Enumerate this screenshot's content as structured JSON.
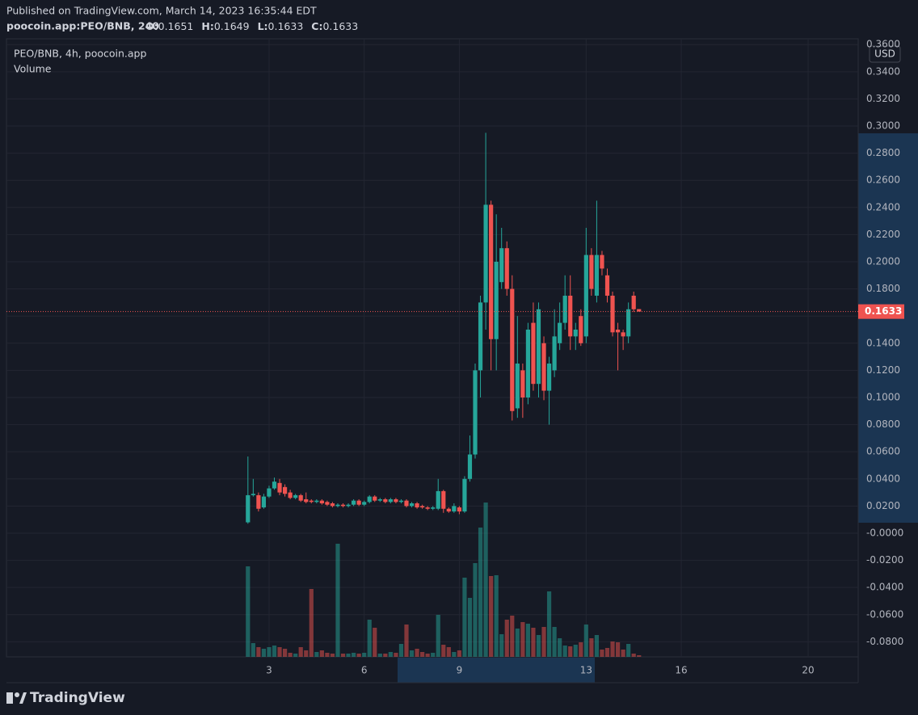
{
  "header": {
    "published": "Published on TradingView.com, March 14, 2023 16:35:44 EDT",
    "symbol": "poocoin.app:PEO/BNB, 240",
    "ohlc": [
      "O:",
      "0.1651",
      "H:",
      "0.1649",
      "L:",
      "0.1633",
      "C:",
      "0.1633"
    ]
  },
  "footer": {
    "brand": "TradingView"
  },
  "chart_data": {
    "type": "candlestick",
    "legend": "PEO/BNB, 4h, poocoin.app",
    "volume_label": "Volume",
    "currency": "USD",
    "up_color": "#26a69a",
    "down_color": "#ef5350",
    "grid": true,
    "x": [
      2.3333,
      2.5,
      2.6667,
      2.8333,
      3,
      3.1667,
      3.3333,
      3.5,
      3.6667,
      3.8333,
      4,
      4.1667,
      4.3333,
      4.5,
      4.6667,
      4.8333,
      5,
      5.1667,
      5.3333,
      5.5,
      5.6667,
      5.8333,
      6,
      6.1667,
      6.3333,
      6.5,
      6.6667,
      6.8333,
      7,
      7.1667,
      7.3333,
      7.5,
      7.6667,
      7.8333,
      8,
      8.1667,
      8.3333,
      8.5,
      8.6667,
      8.8333,
      9,
      9.1667,
      9.3333,
      9.5,
      9.6667,
      9.8333,
      10,
      10.1667,
      10.3333,
      10.5,
      10.6667,
      10.8333,
      11,
      11.1667,
      11.3333,
      11.5,
      11.6667,
      11.8333,
      12,
      12.1667,
      12.3333,
      12.5,
      12.6667,
      12.8333,
      13,
      13.1667,
      13.3333,
      13.5,
      13.6667,
      13.8333,
      14,
      14.1667,
      14.3333,
      14.5,
      14.6667
    ],
    "open": [
      0.008,
      0.028,
      0.028,
      0.019,
      0.027,
      0.033,
      0.037,
      0.034,
      0.03,
      0.026,
      0.028,
      0.025,
      0.024,
      0.023,
      0.024,
      0.023,
      0.022,
      0.02,
      0.021,
      0.02,
      0.021,
      0.024,
      0.021,
      0.023,
      0.027,
      0.024,
      0.025,
      0.023,
      0.025,
      0.023,
      0.024,
      0.02,
      0.022,
      0.02,
      0.019,
      0.018,
      0.018,
      0.031,
      0.018,
      0.016,
      0.019,
      0.016,
      0.04,
      0.058,
      0.12,
      0.17,
      0.242,
      0.143,
      0.185,
      0.21,
      0.18,
      0.092,
      0.12,
      0.1,
      0.155,
      0.11,
      0.14,
      0.105,
      0.12,
      0.14,
      0.155,
      0.175,
      0.145,
      0.16,
      0.145,
      0.205,
      0.175,
      0.205,
      0.19,
      0.175,
      0.15,
      0.148,
      0.145,
      0.175,
      0.1651
    ],
    "high": [
      0.0565,
      0.04,
      0.03,
      0.029,
      0.035,
      0.041,
      0.04,
      0.036,
      0.032,
      0.029,
      0.029,
      0.03,
      0.025,
      0.025,
      0.025,
      0.024,
      0.023,
      0.022,
      0.022,
      0.022,
      0.025,
      0.025,
      0.024,
      0.028,
      0.028,
      0.026,
      0.026,
      0.026,
      0.026,
      0.025,
      0.025,
      0.023,
      0.023,
      0.021,
      0.02,
      0.02,
      0.04,
      0.032,
      0.019,
      0.022,
      0.02,
      0.042,
      0.072,
      0.125,
      0.175,
      0.295,
      0.245,
      0.235,
      0.225,
      0.215,
      0.19,
      0.16,
      0.125,
      0.155,
      0.17,
      0.17,
      0.145,
      0.13,
      0.165,
      0.17,
      0.19,
      0.19,
      0.155,
      0.165,
      0.225,
      0.21,
      0.245,
      0.208,
      0.195,
      0.178,
      0.155,
      0.15,
      0.17,
      0.178,
      0.1649
    ],
    "low": [
      0.007,
      0.027,
      0.016,
      0.018,
      0.026,
      0.032,
      0.028,
      0.027,
      0.025,
      0.025,
      0.023,
      0.022,
      0.022,
      0.022,
      0.021,
      0.02,
      0.019,
      0.019,
      0.019,
      0.019,
      0.02,
      0.02,
      0.02,
      0.022,
      0.023,
      0.023,
      0.022,
      0.022,
      0.022,
      0.022,
      0.019,
      0.019,
      0.018,
      0.018,
      0.017,
      0.017,
      0.017,
      0.015,
      0.015,
      0.015,
      0.014,
      0.015,
      0.038,
      0.055,
      0.1,
      0.15,
      0.12,
      0.12,
      0.18,
      0.175,
      0.083,
      0.085,
      0.085,
      0.095,
      0.105,
      0.1,
      0.098,
      0.08,
      0.115,
      0.135,
      0.15,
      0.135,
      0.135,
      0.138,
      0.14,
      0.175,
      0.17,
      0.19,
      0.17,
      0.145,
      0.12,
      0.135,
      0.14,
      0.163,
      0.1633
    ],
    "close": [
      0.028,
      0.029,
      0.018,
      0.027,
      0.033,
      0.038,
      0.03,
      0.029,
      0.026,
      0.028,
      0.024,
      0.023,
      0.023,
      0.024,
      0.022,
      0.021,
      0.02,
      0.021,
      0.02,
      0.021,
      0.024,
      0.021,
      0.023,
      0.027,
      0.024,
      0.025,
      0.023,
      0.025,
      0.023,
      0.024,
      0.02,
      0.022,
      0.019,
      0.019,
      0.018,
      0.019,
      0.031,
      0.018,
      0.016,
      0.02,
      0.016,
      0.04,
      0.058,
      0.12,
      0.17,
      0.242,
      0.143,
      0.2,
      0.21,
      0.18,
      0.09,
      0.125,
      0.1,
      0.15,
      0.11,
      0.165,
      0.105,
      0.125,
      0.145,
      0.155,
      0.175,
      0.145,
      0.15,
      0.14,
      0.205,
      0.18,
      0.205,
      0.195,
      0.175,
      0.148,
      0.148,
      0.145,
      0.165,
      0.165,
      0.1633
    ],
    "volume": [
      112,
      17,
      12,
      10,
      12,
      14,
      12,
      10,
      5,
      4,
      12,
      8,
      84,
      6,
      8,
      5,
      4,
      140,
      4,
      4,
      5,
      4,
      5,
      46,
      36,
      4,
      4,
      6,
      5,
      16,
      40,
      8,
      10,
      6,
      4,
      5,
      52,
      15,
      12,
      6,
      8,
      98,
      73,
      116,
      160,
      191,
      100,
      101,
      28,
      46,
      51,
      35,
      43,
      41,
      36,
      27,
      37,
      81,
      37,
      23,
      14,
      13,
      15,
      18,
      40,
      23,
      27,
      9,
      11,
      19,
      18,
      9,
      16,
      4,
      2
    ],
    "price_line": {
      "value": 0.1633,
      "label": "0.1633"
    },
    "xlim": [
      -5.282,
      21.58
    ],
    "xticks": [
      3,
      6,
      9,
      13,
      16,
      20
    ],
    "ylim": [
      -0.0911,
      0.3643
    ],
    "yticks": [
      {
        "value": 0.36,
        "label": "0.3600"
      },
      {
        "value": 0.34,
        "label": "0.3400"
      },
      {
        "value": 0.32,
        "label": "0.3200"
      },
      {
        "value": 0.3,
        "label": "0.3000"
      },
      {
        "value": 0.28,
        "label": "0.2800"
      },
      {
        "value": 0.26,
        "label": "0.2600"
      },
      {
        "value": 0.24,
        "label": "0.2400"
      },
      {
        "value": 0.22,
        "label": "0.2200"
      },
      {
        "value": 0.2,
        "label": "0.2000"
      },
      {
        "value": 0.18,
        "label": "0.1800"
      },
      {
        "value": 0.16,
        "label": "0.1600"
      },
      {
        "value": 0.14,
        "label": "0.1400"
      },
      {
        "value": 0.12,
        "label": "0.1200"
      },
      {
        "value": 0.1,
        "label": "0.1000"
      },
      {
        "value": 0.08,
        "label": "0.0800"
      },
      {
        "value": 0.06,
        "label": "0.0600"
      },
      {
        "value": 0.04,
        "label": "0.0400"
      },
      {
        "value": 0.02,
        "label": "0.0200"
      },
      {
        "value": 0,
        "label": "-0.0000"
      },
      {
        "value": -0.02,
        "label": "-0.0200"
      },
      {
        "value": -0.04,
        "label": "-0.0400"
      },
      {
        "value": -0.06,
        "label": "-0.0600"
      },
      {
        "value": -0.08,
        "label": "-0.0800"
      }
    ]
  }
}
